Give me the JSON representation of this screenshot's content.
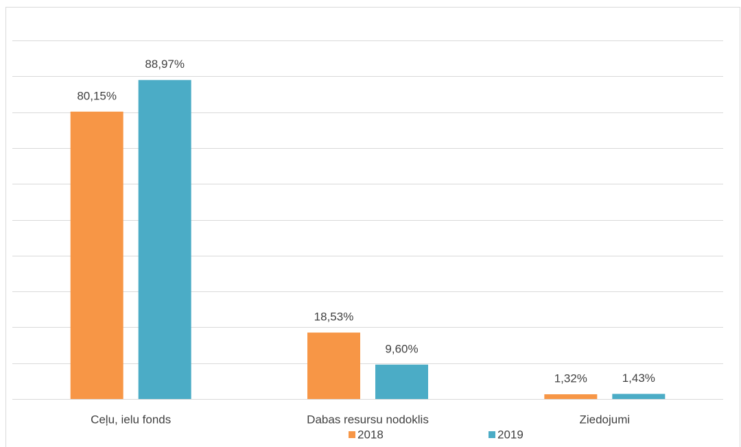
{
  "chart_data": {
    "type": "bar",
    "categories": [
      "Ceļu, ielu fonds",
      "Dabas resursu nodoklis",
      "Ziedojumi"
    ],
    "series": [
      {
        "name": "2018",
        "color": "#f79646",
        "values": [
          80.15,
          18.53,
          1.32
        ],
        "value_labels": [
          "80,15%",
          "18,53%",
          "1,32%"
        ]
      },
      {
        "name": "2019",
        "color": "#4bacc6",
        "values": [
          88.97,
          9.6,
          1.43
        ],
        "value_labels": [
          "88,97%",
          "9,60%",
          "1,43%"
        ]
      }
    ],
    "ylim": [
      0,
      100
    ],
    "yticks": [
      0,
      10,
      20,
      30,
      40,
      50,
      60,
      70,
      80,
      90,
      100
    ],
    "grid": true,
    "legend": "bottom"
  }
}
